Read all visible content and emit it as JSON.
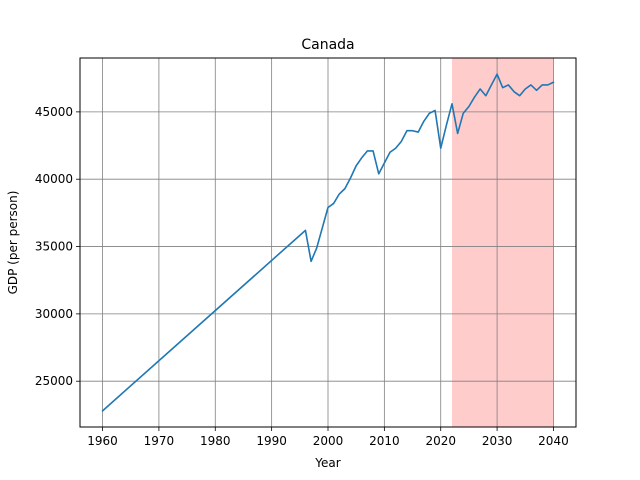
{
  "chart_data": {
    "type": "line",
    "title": "Canada",
    "xlabel": "Year",
    "ylabel": "GDP (per person)",
    "xlim": [
      1956,
      2044
    ],
    "ylim": [
      21600,
      49000
    ],
    "xticks": [
      1960,
      1970,
      1980,
      1990,
      2000,
      2010,
      2020,
      2030,
      2040
    ],
    "yticks": [
      25000,
      30000,
      35000,
      40000,
      45000
    ],
    "grid": true,
    "highlight_region": {
      "x_start": 2022,
      "x_end": 2040,
      "color": "#ffcccc"
    },
    "line_color": "#1f77b4",
    "series": [
      {
        "x": [
          1960,
          1996,
          1997,
          1998,
          1999,
          2000,
          2001,
          2002,
          2003,
          2004,
          2005,
          2006,
          2007,
          2008,
          2009,
          2010,
          2011,
          2012,
          2013,
          2014,
          2015,
          2016,
          2017,
          2018,
          2019,
          2020,
          2021,
          2022,
          2023,
          2024,
          2025,
          2026,
          2027,
          2028,
          2029,
          2030,
          2031,
          2032,
          2033,
          2034,
          2035,
          2036,
          2037,
          2038,
          2039,
          2040
        ],
        "values": [
          22800,
          36200,
          33900,
          34900,
          36400,
          37900,
          38200,
          38900,
          39300,
          40100,
          41000,
          41600,
          42100,
          42100,
          40400,
          41200,
          42000,
          42300,
          42800,
          43600,
          43600,
          43500,
          44300,
          44900,
          45100,
          42300,
          44000,
          45600,
          43400,
          44900,
          45400,
          46100,
          46700,
          46200,
          47000,
          47800,
          46800,
          47000,
          46500,
          46200,
          46700,
          47000,
          46600,
          47000,
          47000,
          47200
        ]
      }
    ]
  }
}
